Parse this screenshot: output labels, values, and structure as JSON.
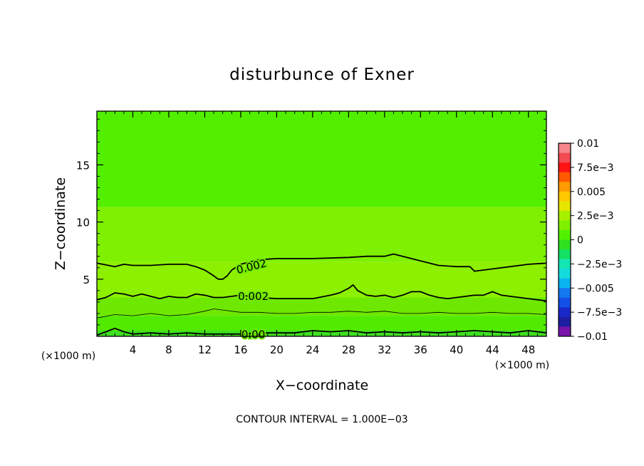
{
  "chart_data": {
    "type": "heatmap",
    "title": "disturbunce of Exner",
    "xlabel": "X−coordinate",
    "ylabel": "Z−coordinate",
    "x_unit_left": "(×1000 m)",
    "x_unit_right": "(×1000 m)",
    "footer": "CONTOUR INTERVAL = 1.000E−03",
    "xlim": [
      0,
      50
    ],
    "ylim": [
      0,
      19.7
    ],
    "x_ticks": [
      4,
      8,
      12,
      16,
      20,
      24,
      28,
      32,
      36,
      40,
      44,
      48
    ],
    "y_ticks": [
      5,
      10,
      15
    ],
    "colorbar": {
      "ticks": [
        {
          "value": 0.01,
          "label": "0.01"
        },
        {
          "value": 0.0075,
          "label": "7.5e−3"
        },
        {
          "value": 0.005,
          "label": "0.005"
        },
        {
          "value": 0.0025,
          "label": "2.5e−3"
        },
        {
          "value": 0,
          "label": "0"
        },
        {
          "value": -0.0025,
          "label": "−2.5e−3"
        },
        {
          "value": -0.005,
          "label": "−0.005"
        },
        {
          "value": -0.0075,
          "label": "−7.5e−3"
        },
        {
          "value": -0.01,
          "label": "−0.01"
        }
      ],
      "levels": [
        {
          "from": 0.009,
          "to": 0.01,
          "color": "#f4868c"
        },
        {
          "from": 0.008,
          "to": 0.009,
          "color": "#f24b52"
        },
        {
          "from": 0.007,
          "to": 0.008,
          "color": "#ff1414"
        },
        {
          "from": 0.006,
          "to": 0.007,
          "color": "#ff5a00"
        },
        {
          "from": 0.005,
          "to": 0.006,
          "color": "#ff9a00"
        },
        {
          "from": 0.004,
          "to": 0.005,
          "color": "#ffc800"
        },
        {
          "from": 0.003,
          "to": 0.004,
          "color": "#e6e600"
        },
        {
          "from": 0.002,
          "to": 0.003,
          "color": "#a6f000"
        },
        {
          "from": 0.001,
          "to": 0.002,
          "color": "#7ef000"
        },
        {
          "from": 0.0,
          "to": 0.001,
          "color": "#52f000"
        },
        {
          "from": -0.001,
          "to": 0.0,
          "color": "#2ee21e"
        },
        {
          "from": -0.002,
          "to": -0.001,
          "color": "#14e064"
        },
        {
          "from": -0.003,
          "to": -0.002,
          "color": "#14e6b4"
        },
        {
          "from": -0.004,
          "to": -0.003,
          "color": "#14dcdc"
        },
        {
          "from": -0.005,
          "to": -0.004,
          "color": "#0ab4f0"
        },
        {
          "from": -0.006,
          "to": -0.005,
          "color": "#1478f0"
        },
        {
          "from": -0.007,
          "to": -0.006,
          "color": "#1450e6"
        },
        {
          "from": -0.008,
          "to": -0.007,
          "color": "#1a28c8"
        },
        {
          "from": -0.009,
          "to": -0.008,
          "color": "#1e1ea0"
        },
        {
          "from": -0.01,
          "to": -0.009,
          "color": "#7814aa"
        }
      ]
    },
    "bands": [
      {
        "name": "green-top",
        "color": "#52f000",
        "z_from": 11.3,
        "z_to": 19.7
      },
      {
        "name": "yellowgreen-upper",
        "color": "#7ef000",
        "z_from": 6.5,
        "z_to": 11.3
      },
      {
        "name": "lime-mid",
        "color": "#8cf000",
        "z_from": 3.4,
        "z_to": 6.5
      },
      {
        "name": "green-lower",
        "color": "#6ee800",
        "z_from": 1.8,
        "z_to": 3.4
      },
      {
        "name": "green-near-surface",
        "color": "#52ea00",
        "z_from": 0.5,
        "z_to": 1.8
      },
      {
        "name": "green-surface",
        "color": "#3ee020",
        "z_from": 0.0,
        "z_to": 0.5
      }
    ],
    "contours": [
      {
        "label": "0.002",
        "weight": "heavy",
        "x": [
          0,
          2,
          3,
          4,
          6,
          8,
          10,
          11,
          12,
          12.8,
          13.5,
          14,
          14.5,
          15,
          16,
          18,
          20,
          24,
          28,
          30,
          32,
          33,
          34,
          36,
          38,
          40,
          41.5,
          42,
          44,
          46,
          48,
          50
        ],
        "z": [
          6.4,
          6.1,
          6.3,
          6.2,
          6.2,
          6.3,
          6.3,
          6.1,
          5.8,
          5.4,
          5.0,
          5.0,
          5.3,
          5.8,
          6.3,
          6.7,
          6.8,
          6.8,
          6.9,
          7.0,
          7.0,
          7.2,
          7.0,
          6.6,
          6.2,
          6.1,
          6.1,
          5.7,
          5.9,
          6.1,
          6.3,
          6.4
        ],
        "label_at": {
          "x": 17.2,
          "z": 6.1,
          "angle": -14
        }
      },
      {
        "label": "0.002",
        "weight": "heavy",
        "x": [
          0,
          1,
          2,
          3,
          4,
          5,
          6,
          7,
          8,
          9,
          10,
          11,
          12,
          13,
          14,
          15,
          16,
          18,
          20,
          22,
          24,
          26,
          27,
          28,
          28.5,
          29,
          30,
          31,
          32,
          33,
          34,
          35,
          36,
          37,
          38,
          39,
          40,
          42,
          43,
          44,
          45,
          46,
          47,
          48,
          49,
          50
        ],
        "z": [
          3.2,
          3.4,
          3.8,
          3.7,
          3.5,
          3.7,
          3.5,
          3.3,
          3.5,
          3.4,
          3.4,
          3.7,
          3.6,
          3.4,
          3.4,
          3.5,
          3.6,
          3.4,
          3.3,
          3.3,
          3.3,
          3.6,
          3.8,
          4.2,
          4.5,
          4.0,
          3.6,
          3.5,
          3.6,
          3.4,
          3.6,
          3.9,
          3.9,
          3.6,
          3.4,
          3.3,
          3.4,
          3.6,
          3.6,
          3.9,
          3.6,
          3.5,
          3.4,
          3.3,
          3.2,
          3.1
        ],
        "label_at": {
          "x": 17.4,
          "z": 3.5,
          "angle": 0
        }
      },
      {
        "label": "",
        "weight": "thin",
        "x": [
          0,
          2,
          4,
          6,
          8,
          10,
          12,
          13,
          14,
          16,
          18,
          20,
          22,
          24,
          26,
          28,
          30,
          32,
          34,
          36,
          38,
          40,
          42,
          44,
          46,
          48,
          50
        ],
        "z": [
          1.6,
          1.9,
          1.8,
          2.0,
          1.8,
          1.9,
          2.2,
          2.4,
          2.3,
          2.1,
          2.1,
          2.0,
          2.0,
          2.1,
          2.1,
          2.2,
          2.1,
          2.2,
          2.0,
          2.0,
          2.1,
          2.0,
          2.0,
          2.1,
          2.0,
          2.0,
          1.9
        ]
      },
      {
        "label": "0.00",
        "weight": "heavy",
        "x": [
          0,
          1,
          2,
          3,
          4,
          6,
          8,
          10,
          12,
          14,
          15,
          16,
          18,
          20,
          22,
          24,
          26,
          28,
          30,
          32,
          34,
          36,
          38,
          40,
          42,
          44,
          46,
          48,
          50
        ],
        "z": [
          0.1,
          0.4,
          0.7,
          0.4,
          0.2,
          0.3,
          0.2,
          0.3,
          0.2,
          0.2,
          0.2,
          0.2,
          0.3,
          0.3,
          0.3,
          0.5,
          0.4,
          0.5,
          0.3,
          0.4,
          0.3,
          0.4,
          0.3,
          0.4,
          0.5,
          0.4,
          0.3,
          0.5,
          0.3
        ],
        "label_at": {
          "x": 17.4,
          "z": 0.15,
          "angle": 0
        }
      }
    ]
  }
}
